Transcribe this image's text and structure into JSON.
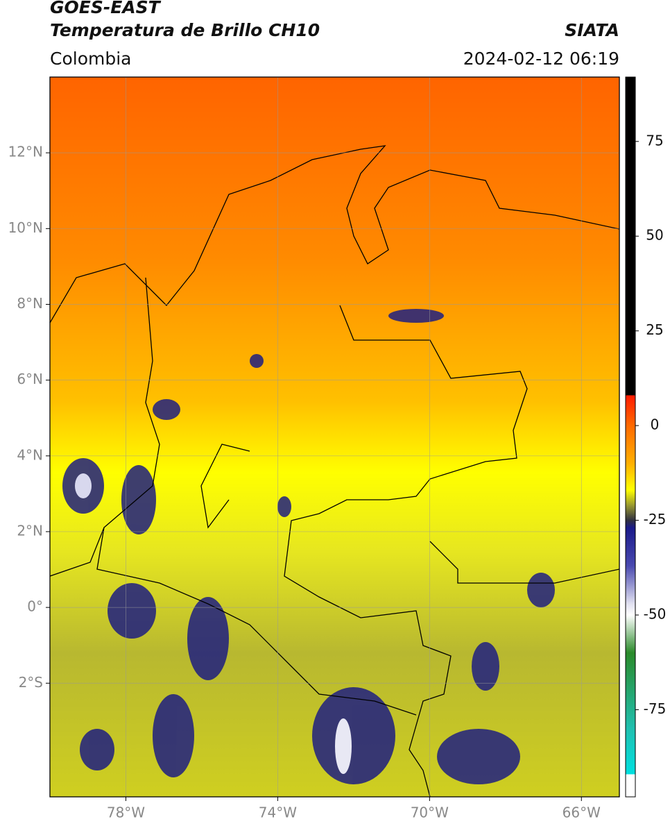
{
  "header": {
    "title": "GOES-EAST",
    "subtitle": "Temperatura de Brillo CH10",
    "source": "SIATA",
    "region": "Colombia",
    "datetime": "2024-02-12 06:19"
  },
  "map": {
    "xlim": [
      -80,
      -65
    ],
    "ylim": [
      -5,
      14
    ],
    "grid": true,
    "xticks": [
      {
        "value": -78,
        "label": "78°W"
      },
      {
        "value": -74,
        "label": "74°W"
      },
      {
        "value": -70,
        "label": "70°W"
      },
      {
        "value": -66,
        "label": "66°W"
      }
    ],
    "yticks": [
      {
        "value": 12,
        "label": "12°N"
      },
      {
        "value": 10,
        "label": "10°N"
      },
      {
        "value": 8,
        "label": "8°N"
      },
      {
        "value": 6,
        "label": "6°N"
      },
      {
        "value": 4,
        "label": "4°N"
      },
      {
        "value": 2,
        "label": "2°N"
      },
      {
        "value": 0,
        "label": "0°"
      },
      {
        "value": -2,
        "label": "2°S"
      }
    ]
  },
  "colorbar": {
    "lim": [
      -98,
      92
    ],
    "ticks": [
      75,
      50,
      25,
      0,
      -25,
      -50,
      -75
    ],
    "colormap": [
      {
        "value": 92,
        "color": "#000000"
      },
      {
        "value": 8,
        "color": "#000000"
      },
      {
        "value": 8,
        "color": "#ff1a00"
      },
      {
        "value": 0,
        "color": "#ff6a00"
      },
      {
        "value": -10,
        "color": "#ffb000"
      },
      {
        "value": -17,
        "color": "#ffff00"
      },
      {
        "value": -21,
        "color": "#9a9a30"
      },
      {
        "value": -25,
        "color": "#303040"
      },
      {
        "value": -27,
        "color": "#1a1a8a"
      },
      {
        "value": -37,
        "color": "#4a4ab0"
      },
      {
        "value": -47,
        "color": "#e0e0f0"
      },
      {
        "value": -50,
        "color": "#ffffff"
      },
      {
        "value": -60,
        "color": "#2a8a2a"
      },
      {
        "value": -80,
        "color": "#20c0b0"
      },
      {
        "value": -92,
        "color": "#00e0e0"
      },
      {
        "value": -92,
        "color": "#ffffff"
      },
      {
        "value": -98,
        "color": "#ffffff"
      }
    ]
  }
}
